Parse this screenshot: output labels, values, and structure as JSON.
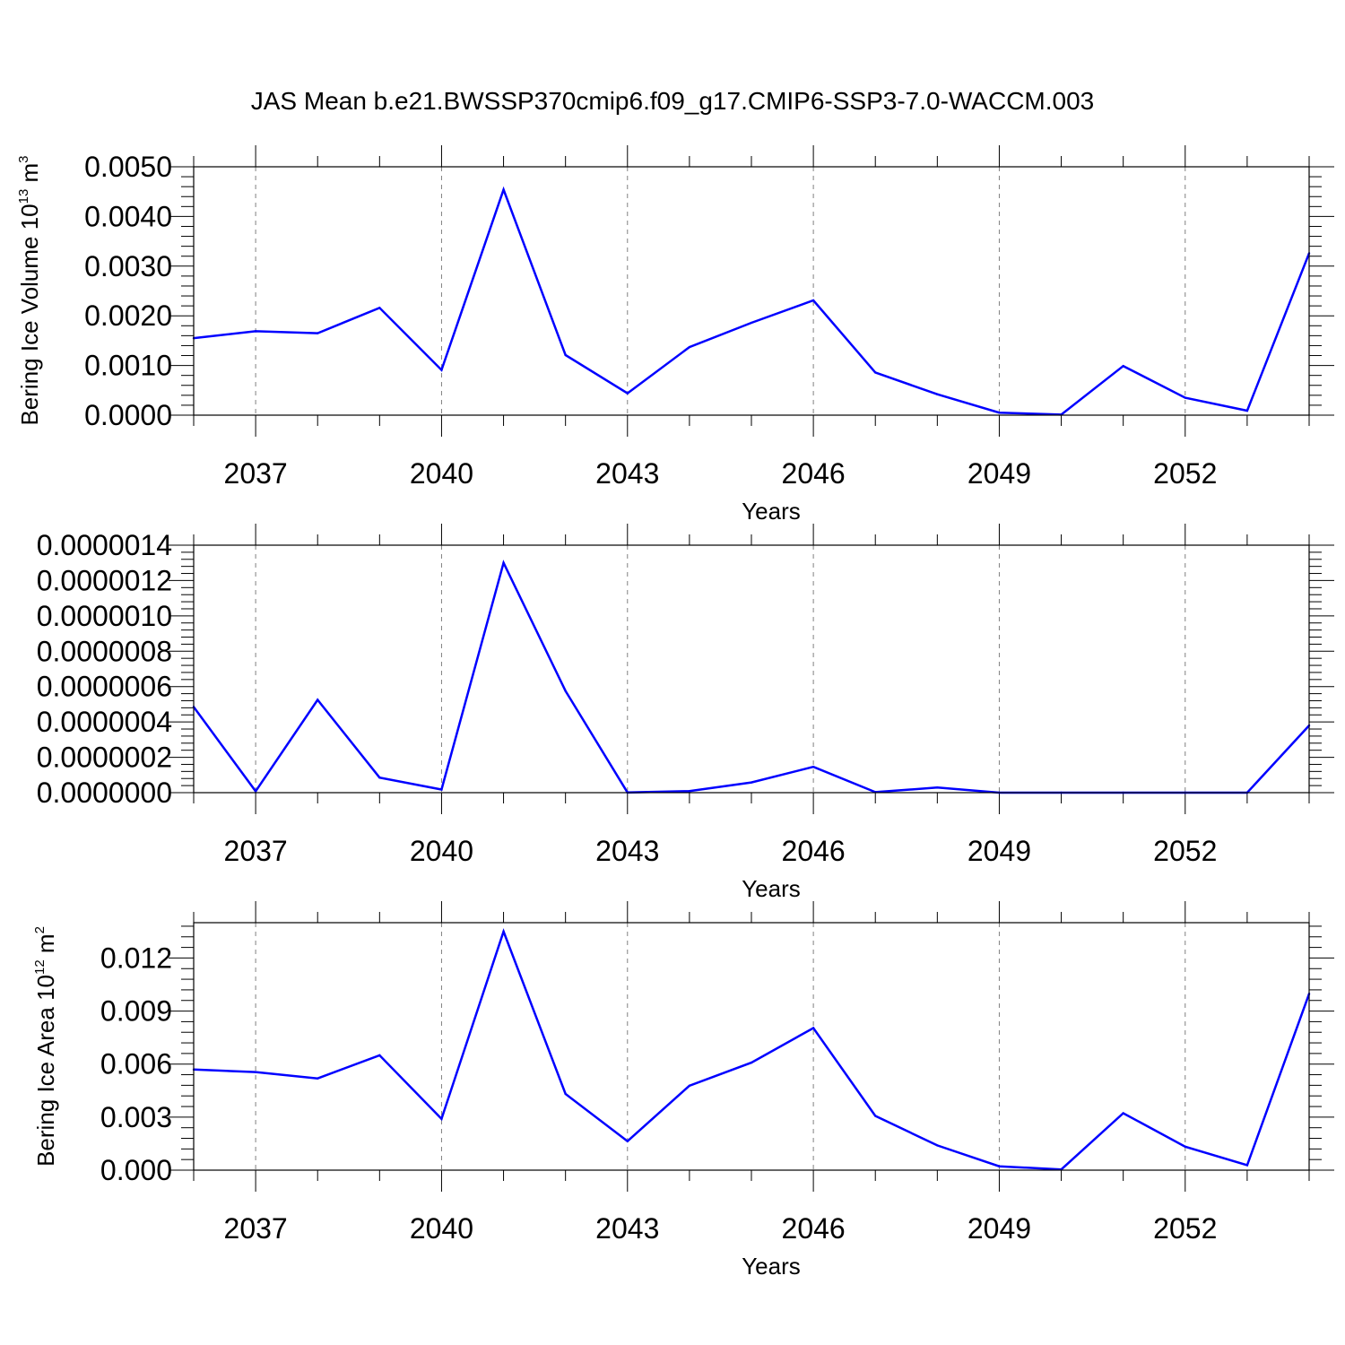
{
  "title": "JAS Mean b.e21.BWSSP370cmip6.f09_g17.CMIP6-SSP3-7.0-WACCM.003",
  "colors": {
    "line": "#0000ff",
    "axis": "#000000",
    "grid": "#808080"
  },
  "chart_data": [
    {
      "type": "line",
      "xlabel": "Years",
      "ylabel": "Bering Ice Volume 10",
      "ylabel_exp": "13",
      "ylabel_unit": " m",
      "ylabel_unit_exp": "3",
      "xlim": [
        2036,
        2054
      ],
      "ylim": [
        0,
        0.005
      ],
      "xticks": [
        "2037",
        "2040",
        "2043",
        "2046",
        "2049",
        "2052"
      ],
      "yticks": [
        "0.0000",
        "0.0010",
        "0.0020",
        "0.0030",
        "0.0040",
        "0.0050"
      ],
      "x": [
        2036,
        2037,
        2038,
        2039,
        2040,
        2041,
        2042,
        2043,
        2044,
        2045,
        2046,
        2047,
        2048,
        2049,
        2050,
        2051,
        2052,
        2053,
        2054
      ],
      "values": [
        0.00155,
        0.00169,
        0.00165,
        0.00216,
        0.00091,
        0.00454,
        0.00121,
        0.00044,
        0.00137,
        0.00186,
        0.00231,
        0.00086,
        0.00042,
        5e-05,
        1e-05,
        0.00099,
        0.00035,
        9e-05,
        0.00326
      ],
      "grid": "vertical dashed at labeled ticks"
    },
    {
      "type": "line",
      "xlabel": "Years",
      "ylabel": "",
      "xlim": [
        2036,
        2054
      ],
      "ylim": [
        0,
        1.4e-06
      ],
      "xticks": [
        "2037",
        "2040",
        "2043",
        "2046",
        "2049",
        "2052"
      ],
      "yticks": [
        "0.0000000",
        "0.0000002",
        "0.0000004",
        "0.0000006",
        "0.0000008",
        "0.0000010",
        "0.0000012",
        "0.0000014"
      ],
      "x": [
        2036,
        2037,
        2038,
        2039,
        2040,
        2041,
        2042,
        2043,
        2044,
        2045,
        2046,
        2047,
        2048,
        2049,
        2050,
        2051,
        2052,
        2053,
        2054
      ],
      "values": [
        4.85e-07,
        8e-09,
        5.25e-07,
        8.5e-08,
        1.8e-08,
        1.3e-06,
        5.75e-07,
        1e-09,
        9e-09,
        5.8e-08,
        1.46e-07,
        3e-09,
        2.9e-08,
        0.0,
        0.0,
        0.0,
        0.0,
        0.0,
        3.8e-07
      ],
      "grid": "vertical dashed at labeled ticks"
    },
    {
      "type": "line",
      "xlabel": "Years",
      "ylabel": "Bering Ice Area 10",
      "ylabel_exp": "12",
      "ylabel_unit": " m",
      "ylabel_unit_exp": "2",
      "xlim": [
        2036,
        2054
      ],
      "ylim": [
        0,
        0.014
      ],
      "xticks": [
        "2037",
        "2040",
        "2043",
        "2046",
        "2049",
        "2052"
      ],
      "yticks": [
        "0.000",
        "0.003",
        "0.006",
        "0.009",
        "0.012"
      ],
      "x": [
        2036,
        2037,
        2038,
        2039,
        2040,
        2041,
        2042,
        2043,
        2044,
        2045,
        2046,
        2047,
        2048,
        2049,
        2050,
        2051,
        2052,
        2053,
        2054
      ],
      "values": [
        0.00569,
        0.00555,
        0.00519,
        0.0065,
        0.0029,
        0.0135,
        0.00431,
        0.00164,
        0.00478,
        0.00608,
        0.00804,
        0.00307,
        0.0014,
        0.00022,
        4e-05,
        0.00322,
        0.00133,
        0.00028,
        0.00998
      ],
      "grid": "vertical dashed at labeled ticks"
    }
  ]
}
